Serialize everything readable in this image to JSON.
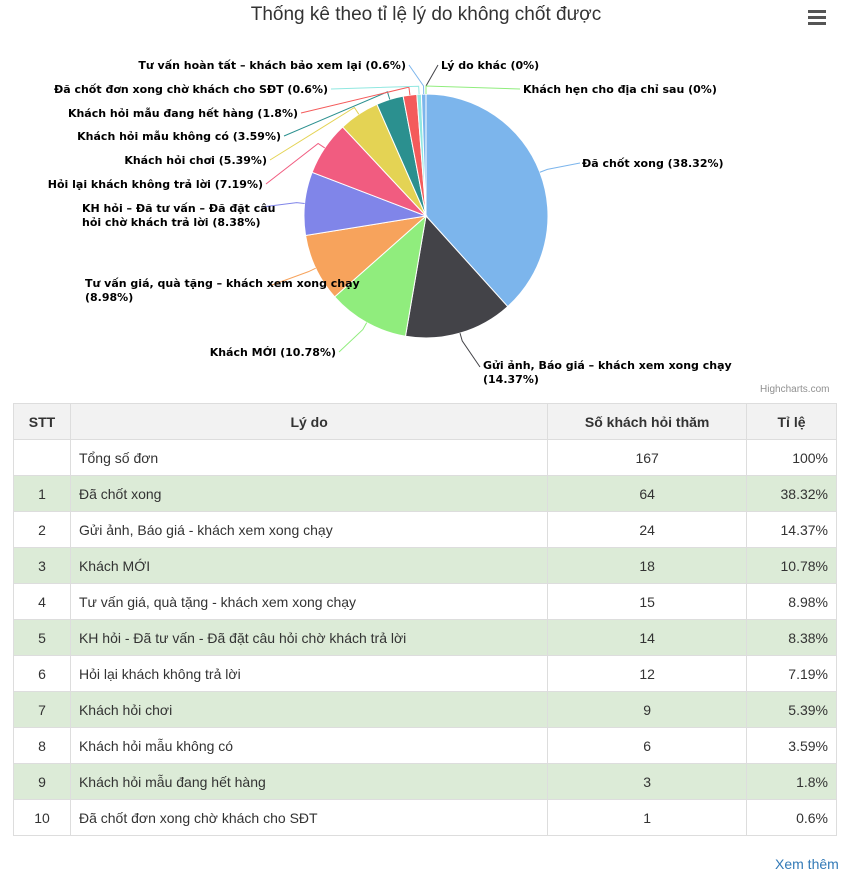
{
  "chart_data": {
    "type": "pie",
    "title": "Thống kê theo tỉ lệ lý do không chốt được",
    "credits": "Highcharts.com",
    "slices": [
      {
        "name": "Đã chốt xong",
        "value": 38.32,
        "color": "#7cb5ec",
        "label": "Đã chốt xong (38.32%)"
      },
      {
        "name": "Gửi ảnh, Báo giá - khách xem xong chạy",
        "value": 14.37,
        "color": "#434348",
        "label": "Gửi ảnh, Báo giá – khách xem xong chạy (14.37%)"
      },
      {
        "name": "Khách MỚI",
        "value": 10.78,
        "color": "#90ed7d",
        "label": "Khách MỚI (10.78%)"
      },
      {
        "name": "Tư vấn giá, quà tặng - khách xem xong chạy",
        "value": 8.98,
        "color": "#f7a35c",
        "label": "Tư vấn giá, quà tặng – khách xem xong chạy (8.98%)"
      },
      {
        "name": "KH hỏi - Đã tư vấn - Đã đặt câu hỏi chờ khách trả lời",
        "value": 8.38,
        "color": "#8085e9",
        "label": "KH hỏi – Đã tư vấn – Đã đặt câu hỏi chờ khách trả lời (8.38%)"
      },
      {
        "name": "Hỏi lại khách không trả lời",
        "value": 7.19,
        "color": "#f15c80",
        "label": "Hỏi lại khách không trả lời (7.19%)"
      },
      {
        "name": "Khách hỏi chơi",
        "value": 5.39,
        "color": "#e4d354",
        "label": "Khách hỏi chơi (5.39%)"
      },
      {
        "name": "Khách hỏi mẫu không có",
        "value": 3.59,
        "color": "#2b908f",
        "label": "Khách hỏi mẫu không có (3.59%)"
      },
      {
        "name": "Khách hỏi mẫu đang hết hàng",
        "value": 1.8,
        "color": "#f45b5b",
        "label": "Khách hỏi mẫu đang hết hàng (1.8%)"
      },
      {
        "name": "Đã chốt đơn xong chờ khách cho SĐT",
        "value": 0.6,
        "color": "#91e8e1",
        "label": "Đã chốt đơn xong chờ khách cho SĐT (0.6%)"
      },
      {
        "name": "Tư vấn hoàn tất - khách bảo xem lại",
        "value": 0.6,
        "color": "#7cb5ec",
        "label": "Tư vấn hoàn tất – khách bảo xem lại (0.6%)"
      },
      {
        "name": "Lý do khác",
        "value": 0,
        "color": "#434348",
        "label": "Lý do khác (0%)"
      },
      {
        "name": "Khách hẹn cho địa chỉ sau",
        "value": 0,
        "color": "#90ed7d",
        "label": "Khách hẹn cho địa chỉ sau (0%)"
      }
    ]
  },
  "table": {
    "headers": {
      "stt": "STT",
      "reason": "Lý do",
      "count": "Số khách hỏi thăm",
      "ratio": "Tỉ lệ"
    },
    "total": {
      "stt": "",
      "reason": "Tổng số đơn",
      "count": "167",
      "ratio": "100%"
    },
    "rows": [
      {
        "stt": "1",
        "reason": "Đã chốt xong",
        "count": "64",
        "ratio": "38.32%"
      },
      {
        "stt": "2",
        "reason": "Gửi ảnh, Báo giá - khách xem xong chạy",
        "count": "24",
        "ratio": "14.37%"
      },
      {
        "stt": "3",
        "reason": "Khách MỚI",
        "count": "18",
        "ratio": "10.78%"
      },
      {
        "stt": "4",
        "reason": "Tư vấn giá, quà tặng - khách xem xong chạy",
        "count": "15",
        "ratio": "8.98%"
      },
      {
        "stt": "5",
        "reason": "KH hỏi - Đã tư vấn - Đã đặt câu hỏi chờ khách trả lời",
        "count": "14",
        "ratio": "8.38%"
      },
      {
        "stt": "6",
        "reason": "Hỏi lại khách không trả lời",
        "count": "12",
        "ratio": "7.19%"
      },
      {
        "stt": "7",
        "reason": "Khách hỏi chơi",
        "count": "9",
        "ratio": "5.39%"
      },
      {
        "stt": "8",
        "reason": "Khách hỏi mẫu không có",
        "count": "6",
        "ratio": "3.59%"
      },
      {
        "stt": "9",
        "reason": "Khách hỏi mẫu đang hết hàng",
        "count": "3",
        "ratio": "1.8%"
      },
      {
        "stt": "10",
        "reason": "Đã chốt đơn xong chờ khách cho SĐT",
        "count": "1",
        "ratio": "0.6%"
      }
    ]
  },
  "more_link": "Xem thêm",
  "menu_icon": "hamburger-menu-icon"
}
